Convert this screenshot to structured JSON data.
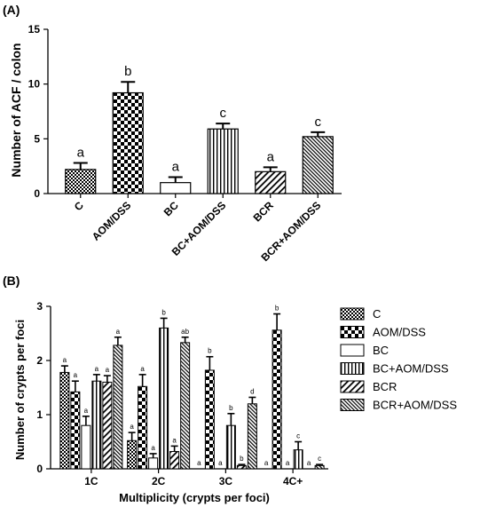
{
  "chart_data": [
    {
      "panel_label": "(A)",
      "type": "bar",
      "ylabel": "Number of  ACF / colon",
      "xlabel": "",
      "ylim": [
        0,
        15
      ],
      "yticks": [
        0,
        5,
        10,
        15
      ],
      "grid": false,
      "categories": [
        "C",
        "AOM/DSS",
        "BC",
        "BC+AOM/DSS",
        "BCR",
        "BCR+AOM/DSS"
      ],
      "values": [
        2.2,
        9.2,
        1.0,
        5.9,
        2.0,
        5.2
      ],
      "errors": [
        0.6,
        1.0,
        0.5,
        0.5,
        0.4,
        0.4
      ],
      "significance": [
        "a",
        "b",
        "a",
        "c",
        "a",
        "c"
      ],
      "patterns": [
        "small-check",
        "big-check",
        "white",
        "vertical",
        "diagonal",
        "diagonal-dense"
      ]
    },
    {
      "panel_label": "(B)",
      "type": "bar",
      "ylabel": "Number of crypts per foci",
      "xlabel": "Multiplicity (crypts per foci)",
      "ylim": [
        0,
        3
      ],
      "yticks": [
        0,
        1,
        2,
        3
      ],
      "grid": false,
      "legend_position": "right",
      "categories": [
        "1C",
        "2C",
        "3C",
        "4C+"
      ],
      "series": [
        {
          "name": "C",
          "pattern": "small-check",
          "values": [
            1.78,
            0.52,
            0.0,
            0.0
          ],
          "errors": [
            0.12,
            0.15,
            0,
            0
          ],
          "significance": [
            "a",
            "a",
            "a",
            "a"
          ]
        },
        {
          "name": "AOM/DSS",
          "pattern": "big-check",
          "values": [
            1.42,
            1.52,
            1.82,
            2.56
          ],
          "errors": [
            0.2,
            0.22,
            0.25,
            0.3
          ],
          "significance": [
            "a",
            "a",
            "b",
            "b"
          ]
        },
        {
          "name": "BC",
          "pattern": "white",
          "values": [
            0.8,
            0.2,
            0.0,
            0.0
          ],
          "errors": [
            0.17,
            0.08,
            0,
            0
          ],
          "significance": [
            "a",
            "a",
            "a",
            "a"
          ]
        },
        {
          "name": "BC+AOM/DSS",
          "pattern": "vertical",
          "values": [
            1.62,
            2.6,
            0.8,
            0.35
          ],
          "errors": [
            0.12,
            0.18,
            0.22,
            0.15
          ],
          "significance": [
            "a",
            "b",
            "b",
            "c"
          ]
        },
        {
          "name": "BCR",
          "pattern": "diagonal",
          "values": [
            1.6,
            0.32,
            0.06,
            0.0
          ],
          "errors": [
            0.12,
            0.1,
            0.02,
            0
          ],
          "significance": [
            "a",
            "a",
            "b",
            "a"
          ]
        },
        {
          "name": "BCR+AOM/DSS",
          "pattern": "diagonal-dense",
          "values": [
            2.28,
            2.33,
            1.2,
            0.06
          ],
          "errors": [
            0.15,
            0.1,
            0.12,
            0.02
          ],
          "significance": [
            "a",
            "ab",
            "d",
            "c"
          ]
        }
      ]
    }
  ]
}
